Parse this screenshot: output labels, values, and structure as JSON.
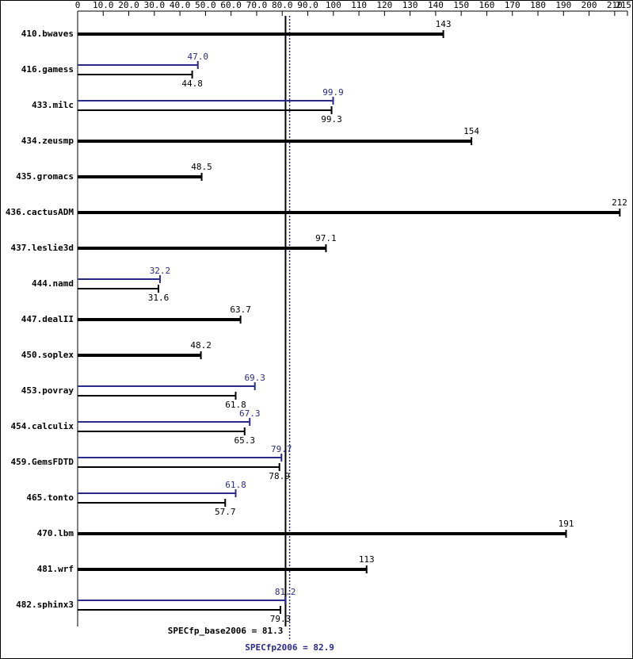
{
  "chart_data": {
    "type": "bar",
    "orientation": "horizontal",
    "categories": [
      "410.bwaves",
      "416.gamess",
      "433.milc",
      "434.zeusmp",
      "435.gromacs",
      "436.cactusADM",
      "437.leslie3d",
      "444.namd",
      "447.dealII",
      "450.soplex",
      "453.povray",
      "454.calculix",
      "459.GemsFDTD",
      "465.tonto",
      "470.lbm",
      "481.wrf",
      "482.sphinx3"
    ],
    "series": [
      {
        "color": "#2a2a8a",
        "values": [
          null,
          47.0,
          99.9,
          null,
          null,
          null,
          null,
          32.2,
          null,
          null,
          69.3,
          67.3,
          79.7,
          61.8,
          null,
          null,
          81.2
        ],
        "value_labels": [
          null,
          "47.0",
          null,
          null,
          null,
          null,
          null,
          null,
          null,
          null,
          null,
          null,
          null,
          null,
          null,
          null,
          null
        ]
      },
      {
        "color": "#000000",
        "values": [
          143,
          44.8,
          99.3,
          154,
          48.5,
          212,
          97.1,
          31.6,
          63.7,
          48.2,
          61.8,
          65.3,
          78.9,
          57.7,
          191,
          113,
          79.3
        ]
      }
    ],
    "xlim": [
      0,
      215
    ],
    "xticks": [
      0,
      {
        "value": 10,
        "label": "10.0"
      },
      {
        "value": 20,
        "label": "20.0"
      },
      {
        "value": 30,
        "label": "30.0"
      },
      {
        "value": 40,
        "label": "40.0"
      },
      {
        "value": 50,
        "label": "50.0"
      },
      {
        "value": 60,
        "label": "60.0"
      },
      {
        "value": 70,
        "label": "70.0"
      },
      {
        "value": 80,
        "label": "80.0"
      },
      {
        "value": 90,
        "label": "90.0"
      },
      100,
      110,
      120,
      130,
      140,
      150,
      160,
      170,
      180,
      190,
      200,
      210,
      215
    ],
    "reference_lines": [
      {
        "value": 81.3,
        "label": "SPECfp_base2006 = 81.3",
        "color": "#000000",
        "style": "solid"
      },
      {
        "value": 82.9,
        "label": "SPECfp2006 = 82.9",
        "color": "#2a2a8a",
        "style": "dotted"
      }
    ]
  }
}
